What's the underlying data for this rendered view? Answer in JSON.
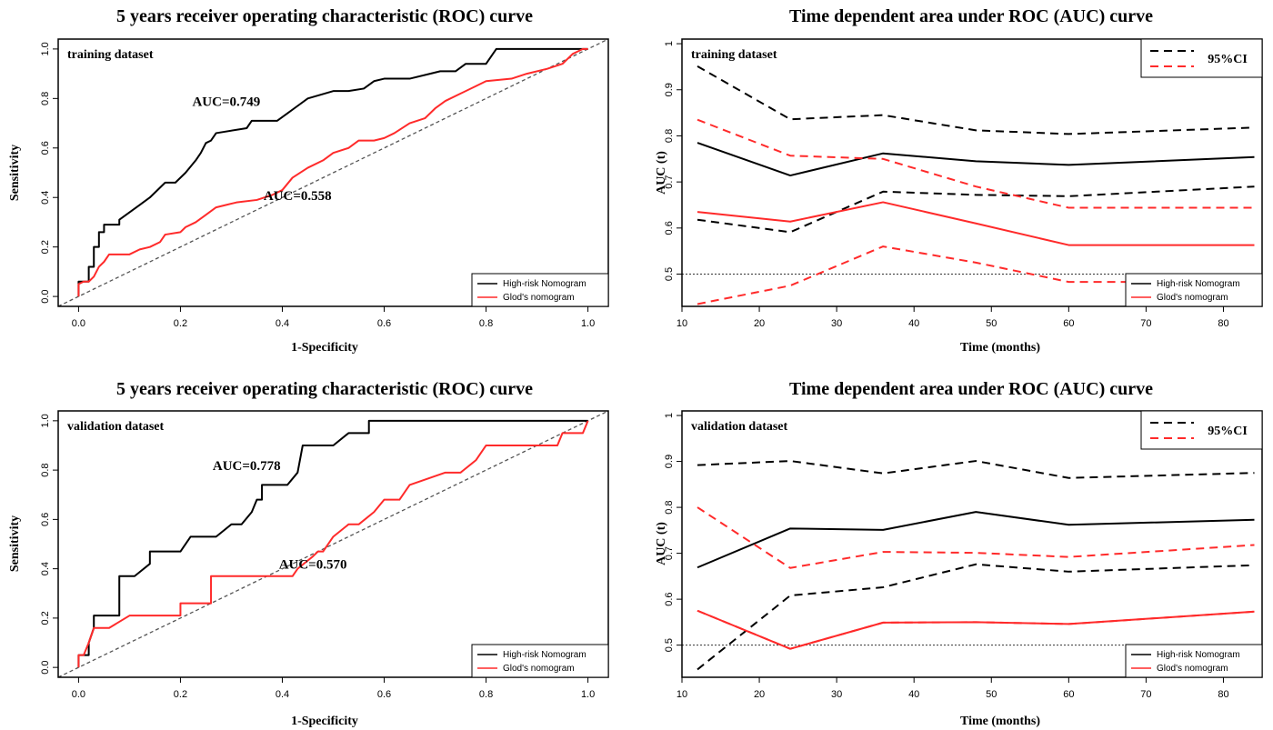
{
  "colors": {
    "high_risk": "#000000",
    "glod": "#ff2a2a",
    "reference": "#555555"
  },
  "chart_data": [
    {
      "type": "line",
      "title": "5 years receiver operating characteristic (ROC) curve",
      "xlabel": "1-Specificity",
      "ylabel": "Sensitivity",
      "dataset_label": "training dataset",
      "xlim": [
        0,
        1
      ],
      "ylim": [
        0,
        1
      ],
      "xticks": [
        "0.0",
        "0.2",
        "0.4",
        "0.6",
        "0.8",
        "1.0"
      ],
      "yticks": [
        "0.0",
        "0.2",
        "0.4",
        "0.6",
        "0.8",
        "1.0"
      ],
      "legend": {
        "position": "bottom-right",
        "entries": [
          "High-risk Nomogram",
          "Glod's nomogram"
        ]
      },
      "series": [
        {
          "name": "High-risk Nomogram",
          "color": "#000000",
          "auc_label": "AUC=0.749",
          "auc_at": [
            0.29,
            0.77
          ],
          "x": [
            0,
            0,
            0.02,
            0.02,
            0.03,
            0.03,
            0.04,
            0.04,
            0.05,
            0.05,
            0.08,
            0.08,
            0.1,
            0.12,
            0.14,
            0.17,
            0.19,
            0.21,
            0.23,
            0.24,
            0.25,
            0.26,
            0.27,
            0.33,
            0.34,
            0.39,
            0.41,
            0.43,
            0.45,
            0.5,
            0.53,
            0.56,
            0.58,
            0.6,
            0.65,
            0.69,
            0.71,
            0.74,
            0.76,
            0.8,
            0.82,
            0.85,
            0.9,
            0.95,
            1.0
          ],
          "y": [
            0,
            0.06,
            0.06,
            0.12,
            0.12,
            0.2,
            0.2,
            0.26,
            0.26,
            0.29,
            0.29,
            0.31,
            0.34,
            0.37,
            0.4,
            0.46,
            0.46,
            0.5,
            0.55,
            0.58,
            0.62,
            0.63,
            0.66,
            0.68,
            0.71,
            0.71,
            0.74,
            0.77,
            0.8,
            0.83,
            0.83,
            0.84,
            0.87,
            0.88,
            0.88,
            0.9,
            0.91,
            0.91,
            0.94,
            0.94,
            1.0,
            1.0,
            1.0,
            1.0,
            1.0
          ]
        },
        {
          "name": "Glod's nomogram",
          "color": "#ff2a2a",
          "auc_label": "AUC=0.558",
          "auc_at": [
            0.43,
            0.39
          ],
          "x": [
            0,
            0,
            0.01,
            0.02,
            0.03,
            0.04,
            0.05,
            0.06,
            0.07,
            0.1,
            0.12,
            0.14,
            0.16,
            0.17,
            0.2,
            0.21,
            0.23,
            0.25,
            0.27,
            0.29,
            0.31,
            0.35,
            0.38,
            0.4,
            0.42,
            0.45,
            0.48,
            0.5,
            0.53,
            0.55,
            0.58,
            0.6,
            0.62,
            0.65,
            0.68,
            0.7,
            0.72,
            0.75,
            0.78,
            0.8,
            0.85,
            0.88,
            0.92,
            0.95,
            0.97,
            0.99,
            1.0
          ],
          "y": [
            0,
            0.05,
            0.06,
            0.06,
            0.08,
            0.12,
            0.14,
            0.17,
            0.17,
            0.17,
            0.19,
            0.2,
            0.22,
            0.25,
            0.26,
            0.28,
            0.3,
            0.33,
            0.36,
            0.37,
            0.38,
            0.39,
            0.41,
            0.43,
            0.48,
            0.52,
            0.55,
            0.58,
            0.6,
            0.63,
            0.63,
            0.64,
            0.66,
            0.7,
            0.72,
            0.76,
            0.79,
            0.82,
            0.85,
            0.87,
            0.88,
            0.9,
            0.92,
            0.94,
            0.98,
            1.0,
            1.0
          ]
        }
      ]
    },
    {
      "type": "line",
      "title": "Time dependent area under ROC (AUC) curve",
      "xlabel": "Time (months)",
      "ylabel": "AUC (t)",
      "dataset_label": "training dataset",
      "xlim": [
        10,
        85
      ],
      "ylim": [
        0.43,
        1.01
      ],
      "xticks": [
        10,
        20,
        30,
        40,
        50,
        60,
        70,
        80
      ],
      "yticks": [
        0.5,
        0.6,
        0.7,
        0.8,
        0.9,
        1.0
      ],
      "reference_line": 0.5,
      "legend": {
        "position": "bottom-right",
        "entries": [
          "High-risk Nomogram",
          "Glod's nomogram"
        ]
      },
      "ci_legend": {
        "position": "top-right",
        "label": "95%CI"
      },
      "series": [
        {
          "name": "High-risk Nomogram",
          "color": "#000000",
          "style": "solid",
          "x": [
            12,
            24,
            36,
            48,
            60,
            84
          ],
          "y": [
            0.785,
            0.714,
            0.762,
            0.745,
            0.737,
            0.754
          ]
        },
        {
          "color": "#000000",
          "style": "dashed",
          "x": [
            12,
            24,
            36,
            48,
            60,
            84
          ],
          "y": [
            0.951,
            0.836,
            0.845,
            0.812,
            0.804,
            0.818
          ]
        },
        {
          "color": "#000000",
          "style": "dashed",
          "x": [
            12,
            24,
            36,
            48,
            60,
            84
          ],
          "y": [
            0.618,
            0.591,
            0.679,
            0.672,
            0.669,
            0.69
          ]
        },
        {
          "name": "Glod's nomogram",
          "color": "#ff2a2a",
          "style": "solid",
          "x": [
            12,
            24,
            36,
            48,
            60,
            84
          ],
          "y": [
            0.635,
            0.614,
            0.656,
            0.61,
            0.563,
            0.563
          ]
        },
        {
          "color": "#ff2a2a",
          "style": "dashed",
          "x": [
            12,
            24,
            36,
            48,
            60,
            84
          ],
          "y": [
            0.835,
            0.757,
            0.75,
            0.69,
            0.644,
            0.644
          ]
        },
        {
          "color": "#ff2a2a",
          "style": "dashed",
          "x": [
            12,
            24,
            36,
            48,
            60,
            84
          ],
          "y": [
            0.435,
            0.475,
            0.56,
            0.525,
            0.483,
            0.483
          ]
        }
      ]
    },
    {
      "type": "line",
      "title": "5 years receiver operating characteristic (ROC) curve",
      "xlabel": "1-Specificity",
      "ylabel": "Sensitivity",
      "dataset_label": "validation dataset",
      "xlim": [
        0,
        1
      ],
      "ylim": [
        0,
        1
      ],
      "xticks": [
        "0.0",
        "0.2",
        "0.4",
        "0.6",
        "0.8",
        "1.0"
      ],
      "yticks": [
        "0.0",
        "0.2",
        "0.4",
        "0.6",
        "0.8",
        "1.0"
      ],
      "legend": {
        "position": "bottom-right",
        "entries": [
          "High-risk Nomogram",
          "Glod's nomogram"
        ]
      },
      "series": [
        {
          "name": "High-risk Nomogram",
          "color": "#000000",
          "auc_label": "AUC=0.778",
          "auc_at": [
            0.33,
            0.8
          ],
          "x": [
            0,
            0,
            0.02,
            0.02,
            0.03,
            0.03,
            0.05,
            0.08,
            0.08,
            0.11,
            0.14,
            0.14,
            0.2,
            0.22,
            0.25,
            0.27,
            0.3,
            0.32,
            0.34,
            0.35,
            0.36,
            0.36,
            0.41,
            0.43,
            0.44,
            0.47,
            0.48,
            0.5,
            0.53,
            0.54,
            0.57,
            0.57,
            0.6,
            0.8,
            1.0
          ],
          "y": [
            0,
            0.05,
            0.05,
            0.1,
            0.16,
            0.21,
            0.21,
            0.21,
            0.37,
            0.37,
            0.42,
            0.47,
            0.47,
            0.53,
            0.53,
            0.53,
            0.58,
            0.58,
            0.63,
            0.68,
            0.68,
            0.74,
            0.74,
            0.79,
            0.9,
            0.9,
            0.9,
            0.9,
            0.95,
            0.95,
            0.95,
            1.0,
            1.0,
            1.0,
            1.0
          ]
        },
        {
          "name": "Glod's nomogram",
          "color": "#ff2a2a",
          "auc_label": "AUC=0.570",
          "auc_at": [
            0.46,
            0.4
          ],
          "x": [
            0,
            0,
            0.01,
            0.02,
            0.03,
            0.06,
            0.06,
            0.1,
            0.1,
            0.2,
            0.2,
            0.26,
            0.26,
            0.32,
            0.37,
            0.42,
            0.43,
            0.46,
            0.47,
            0.48,
            0.5,
            0.53,
            0.55,
            0.58,
            0.6,
            0.63,
            0.65,
            0.72,
            0.75,
            0.78,
            0.8,
            0.94,
            0.95,
            0.97,
            0.99,
            1.0
          ],
          "y": [
            0,
            0.05,
            0.05,
            0.1,
            0.16,
            0.16,
            0.16,
            0.21,
            0.21,
            0.21,
            0.26,
            0.26,
            0.37,
            0.37,
            0.37,
            0.37,
            0.4,
            0.45,
            0.47,
            0.47,
            0.53,
            0.58,
            0.58,
            0.63,
            0.68,
            0.68,
            0.74,
            0.79,
            0.79,
            0.84,
            0.9,
            0.9,
            0.95,
            0.95,
            0.95,
            1.0
          ]
        }
      ]
    },
    {
      "type": "line",
      "title": "Time dependent area under ROC (AUC) curve",
      "xlabel": "Time (months)",
      "ylabel": "AUC (t)",
      "dataset_label": "validation dataset",
      "xlim": [
        10,
        85
      ],
      "ylim": [
        0.43,
        1.01
      ],
      "xticks": [
        10,
        20,
        30,
        40,
        50,
        60,
        70,
        80
      ],
      "yticks": [
        0.5,
        0.6,
        0.7,
        0.8,
        0.9,
        1.0
      ],
      "reference_line": 0.5,
      "legend": {
        "position": "bottom-right",
        "entries": [
          "High-risk Nomogram",
          "Glod's nomogram"
        ]
      },
      "ci_legend": {
        "position": "top-right",
        "label": "95%CI"
      },
      "series": [
        {
          "name": "High-risk Nomogram",
          "color": "#000000",
          "style": "solid",
          "x": [
            12,
            24,
            36,
            48,
            60,
            84
          ],
          "y": [
            0.669,
            0.754,
            0.751,
            0.79,
            0.762,
            0.773
          ]
        },
        {
          "color": "#000000",
          "style": "dashed",
          "x": [
            12,
            24,
            36,
            48,
            60,
            84
          ],
          "y": [
            0.892,
            0.901,
            0.874,
            0.901,
            0.864,
            0.875
          ]
        },
        {
          "color": "#000000",
          "style": "dashed",
          "x": [
            12,
            24,
            36,
            48,
            60,
            84
          ],
          "y": [
            0.447,
            0.608,
            0.626,
            0.676,
            0.66,
            0.674
          ]
        },
        {
          "name": "Glod's nomogram",
          "color": "#ff2a2a",
          "style": "solid",
          "x": [
            12,
            24,
            36,
            48,
            60,
            84
          ],
          "y": [
            0.575,
            0.492,
            0.549,
            0.55,
            0.546,
            0.573
          ]
        },
        {
          "color": "#ff2a2a",
          "style": "dashed",
          "x": [
            12,
            24,
            36,
            48,
            60,
            84
          ],
          "y": [
            0.8,
            0.668,
            0.703,
            0.701,
            0.692,
            0.718
          ]
        },
        {
          "color": "#ff2a2a",
          "style": "dashed",
          "x": [
            12,
            24,
            36,
            48,
            60,
            84
          ],
          "y": [
            0.575,
            0.492,
            0.549,
            0.55,
            0.546,
            0.573
          ]
        }
      ]
    }
  ]
}
